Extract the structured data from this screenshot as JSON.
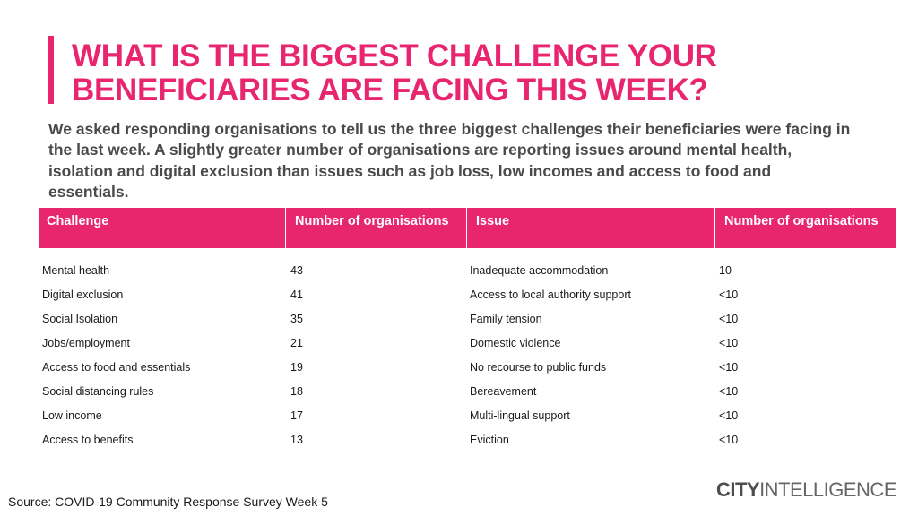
{
  "title": {
    "line1": "WHAT IS THE BIGGEST CHALLENGE YOUR",
    "line2": "BENEFICIARIES ARE FACING THIS WEEK?"
  },
  "subtitle": "We asked responding organisations to tell us the three biggest challenges their beneficiaries were facing in the last week. A slightly greater number of organisations are reporting issues around mental health, isolation and digital exclusion than issues such as job loss, low incomes and access to food and essentials.",
  "table": {
    "headers": [
      "Challenge",
      "Number of organisations",
      "Issue",
      "Number of organisations"
    ],
    "rows": [
      [
        "Mental health",
        "43",
        "Inadequate accommodation",
        "10"
      ],
      [
        "Digital exclusion",
        "41",
        "Access to local authority support",
        "<10"
      ],
      [
        "Social Isolation",
        "35",
        "Family tension",
        "<10"
      ],
      [
        "Jobs/employment",
        "21",
        "Domestic violence",
        "<10"
      ],
      [
        "Access to food and essentials",
        "19",
        "No recourse to public funds",
        "<10"
      ],
      [
        "Social distancing rules",
        "18",
        "Bereavement",
        "<10"
      ],
      [
        "Low income",
        "17",
        "Multi-lingual support",
        "<10"
      ],
      [
        "Access to benefits",
        "13",
        "Eviction",
        "<10"
      ]
    ]
  },
  "source": "Source: COVID-19 Community Response Survey Week 5",
  "logo": {
    "bold": "CITY",
    "light": "INTELLIGENCE"
  },
  "colors": {
    "accent": "#e8266f",
    "text": "#4a4a4a"
  }
}
